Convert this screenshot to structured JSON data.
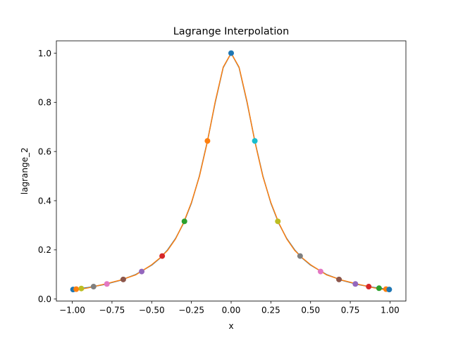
{
  "chart_data": {
    "type": "line",
    "title": "Lagrange Interpolation",
    "xlabel": "x",
    "ylabel": "lagrange_2",
    "xlim": [
      -1.1,
      1.1
    ],
    "ylim": [
      -0.0083,
      1.05
    ],
    "grid": false,
    "x_ticks": [
      -1.0,
      -0.75,
      -0.5,
      -0.25,
      0.0,
      0.25,
      0.5,
      0.75,
      1.0
    ],
    "x_tick_labels": [
      "−1.00",
      "−0.75",
      "−0.50",
      "−0.25",
      "0.00",
      "0.25",
      "0.50",
      "0.75",
      "1.00"
    ],
    "y_ticks": [
      0.0,
      0.2,
      0.4,
      0.6,
      0.8,
      1.0
    ],
    "y_tick_labels": [
      "0.0",
      "0.2",
      "0.4",
      "0.6",
      "0.8",
      "1.0"
    ],
    "series": [
      {
        "color": "#1f77b4",
        "x": [
          -1.0,
          -0.9,
          -0.8,
          -0.7,
          -0.6,
          -0.5,
          -0.45,
          -0.4,
          -0.35,
          -0.3,
          -0.25,
          -0.2,
          -0.15,
          -0.1,
          -0.05,
          0.0,
          0.05,
          0.1,
          0.15,
          0.2,
          0.25,
          0.3,
          0.35,
          0.4,
          0.45,
          0.5,
          0.6,
          0.7,
          0.8,
          0.9,
          1.0
        ],
        "y": [
          0.0385,
          0.047,
          0.0588,
          0.0755,
          0.1,
          0.1379,
          0.1649,
          0.2,
          0.2462,
          0.3077,
          0.3902,
          0.5,
          0.64,
          0.8,
          0.9412,
          1.0,
          0.9412,
          0.8,
          0.64,
          0.5,
          0.3902,
          0.3077,
          0.2462,
          0.2,
          0.1649,
          0.1379,
          0.1,
          0.0755,
          0.0588,
          0.047,
          0.0385
        ]
      },
      {
        "color": "#ff7f0e",
        "x": [
          -0.995,
          -0.9,
          -0.8,
          -0.7,
          -0.6,
          -0.5,
          -0.45,
          -0.4,
          -0.35,
          -0.3,
          -0.25,
          -0.2,
          -0.15,
          -0.1,
          -0.05,
          0.0,
          0.05,
          0.1,
          0.15,
          0.2,
          0.25,
          0.3,
          0.35,
          0.4,
          0.45,
          0.5,
          0.6,
          0.7,
          0.8,
          0.9,
          0.995
        ],
        "y": [
          0.035,
          0.0455,
          0.0602,
          0.0765,
          0.0985,
          0.1395,
          0.166,
          0.198,
          0.2445,
          0.3095,
          0.3925,
          0.498,
          0.638,
          0.803,
          0.943,
          1.0,
          0.943,
          0.803,
          0.638,
          0.498,
          0.3925,
          0.3095,
          0.2445,
          0.198,
          0.166,
          0.1395,
          0.0985,
          0.0765,
          0.0602,
          0.0455,
          0.035
        ]
      }
    ],
    "points": [
      {
        "x": -0.995,
        "y": 0.0389,
        "color": "#1f77b4"
      },
      {
        "x": -0.975,
        "y": 0.0403,
        "color": "#ff7f0e"
      },
      {
        "x": -0.943,
        "y": 0.0429,
        "color": "#bcbd22"
      },
      {
        "x": -0.866,
        "y": 0.0506,
        "color": "#7f7f7f"
      },
      {
        "x": -0.782,
        "y": 0.0614,
        "color": "#e377c2"
      },
      {
        "x": -0.679,
        "y": 0.0798,
        "color": "#8c564b"
      },
      {
        "x": -0.563,
        "y": 0.112,
        "color": "#9467bd"
      },
      {
        "x": -0.434,
        "y": 0.175,
        "color": "#d62728"
      },
      {
        "x": -0.294,
        "y": 0.316,
        "color": "#2ca02c"
      },
      {
        "x": -0.149,
        "y": 0.643,
        "color": "#ff7f0e"
      },
      {
        "x": 0.0,
        "y": 1.0,
        "color": "#1f77b4"
      },
      {
        "x": 0.149,
        "y": 0.643,
        "color": "#17becf"
      },
      {
        "x": 0.294,
        "y": 0.316,
        "color": "#bcbd22"
      },
      {
        "x": 0.434,
        "y": 0.175,
        "color": "#7f7f7f"
      },
      {
        "x": 0.563,
        "y": 0.112,
        "color": "#e377c2"
      },
      {
        "x": 0.679,
        "y": 0.0798,
        "color": "#8c564b"
      },
      {
        "x": 0.782,
        "y": 0.0614,
        "color": "#9467bd"
      },
      {
        "x": 0.866,
        "y": 0.0506,
        "color": "#d62728"
      },
      {
        "x": 0.931,
        "y": 0.0441,
        "color": "#2ca02c"
      },
      {
        "x": 0.975,
        "y": 0.0403,
        "color": "#ff7f0e"
      },
      {
        "x": 0.995,
        "y": 0.0389,
        "color": "#1f77b4"
      }
    ]
  }
}
